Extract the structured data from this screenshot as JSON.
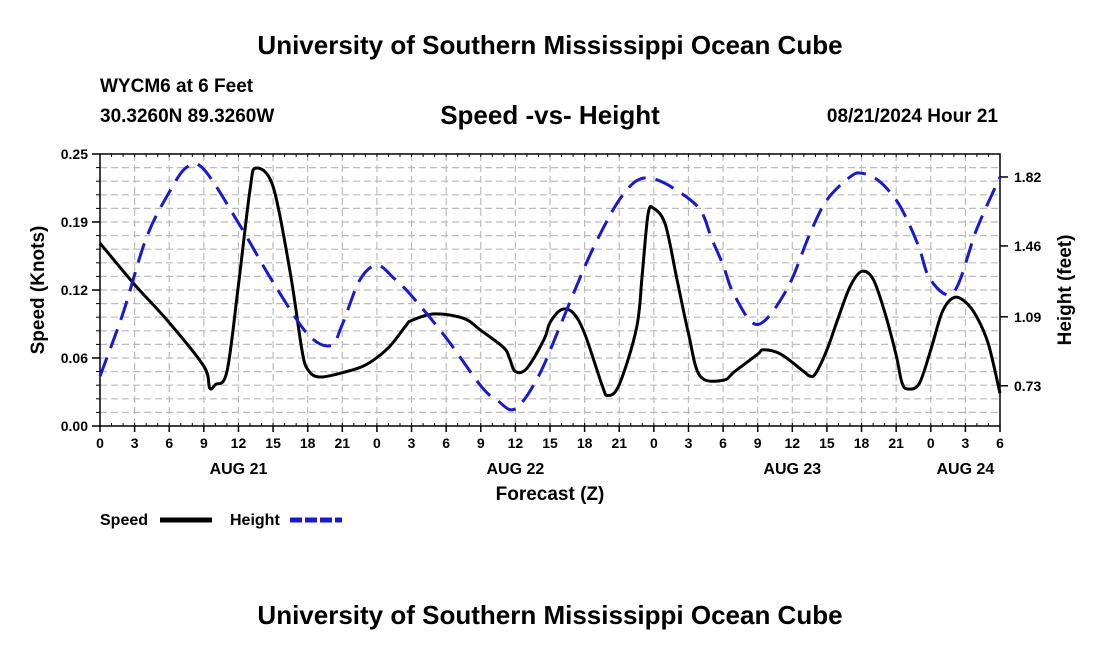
{
  "header": {
    "title": "University of Southern Mississippi Ocean Cube",
    "station": "WYCM6 at 6 Feet",
    "coordinates": "30.3260N  89.3260W",
    "subtitle": "Speed -vs- Height",
    "datetime": "08/21/2024 Hour 21"
  },
  "footer": {
    "title": "University of Southern Mississippi Ocean Cube"
  },
  "colors": {
    "speed": "#000000",
    "height": "#1a1acc",
    "grid": "#bbbbbb"
  },
  "chart_data": {
    "type": "line",
    "title": "Speed -vs- Height",
    "xlabel": "Forecast (Z)",
    "ylabel_left": "Speed (Knots)",
    "ylabel_right": "Height (feet)",
    "x_range_hours": [
      0,
      78
    ],
    "x_tick_step_hours": 3,
    "x_tick_labels": [
      "0",
      "3",
      "6",
      "9",
      "12",
      "15",
      "18",
      "21",
      "0",
      "3",
      "6",
      "9",
      "12",
      "15",
      "18",
      "21",
      "0",
      "3",
      "6",
      "9",
      "12",
      "15",
      "18",
      "21",
      "0",
      "3",
      "6"
    ],
    "date_labels": [
      {
        "hour": 12,
        "label": "AUG 21"
      },
      {
        "hour": 36,
        "label": "AUG 22"
      },
      {
        "hour": 60,
        "label": "AUG 23"
      },
      {
        "hour": 75,
        "label": "AUG 24"
      }
    ],
    "y_left_range": [
      0,
      0.25
    ],
    "y_left_ticks": [
      "0.00",
      "0.06",
      "0.12",
      "0.19",
      "0.25"
    ],
    "y_right_range": [
      0.52,
      1.94
    ],
    "y_right_ticks": [
      {
        "value": 0.73,
        "label": "0.73"
      },
      {
        "value": 1.09,
        "label": "1.09"
      },
      {
        "value": 1.46,
        "label": "1.46"
      },
      {
        "value": 1.82,
        "label": "1.82"
      }
    ],
    "grid": true,
    "legend": [
      {
        "name": "Speed",
        "style": "solid"
      },
      {
        "name": "Height",
        "style": "dashed"
      }
    ],
    "series": [
      {
        "name": "Speed",
        "axis": "left",
        "x": [
          0,
          3,
          6,
          9,
          9.5,
          10,
          11,
          12,
          13,
          13.5,
          15,
          16.5,
          17.5,
          18,
          19,
          21,
          23,
          25,
          26.5,
          27,
          29,
          31.5,
          33,
          35,
          35.5,
          36,
          37,
          38.5,
          39,
          40,
          41,
          42,
          43.5,
          44,
          45,
          46.5,
          47,
          47.5,
          48,
          49,
          50,
          51,
          52,
          54,
          55,
          57,
          57.5,
          59,
          61,
          61.5,
          62,
          63,
          64,
          65,
          66,
          67,
          68,
          69,
          69.5,
          70,
          71,
          72,
          73,
          74,
          75,
          76,
          77,
          78
        ],
        "y": [
          0.168,
          0.13,
          0.095,
          0.055,
          0.035,
          0.038,
          0.05,
          0.13,
          0.217,
          0.237,
          0.22,
          0.14,
          0.07,
          0.052,
          0.045,
          0.049,
          0.056,
          0.072,
          0.092,
          0.097,
          0.103,
          0.099,
          0.088,
          0.072,
          0.062,
          0.05,
          0.053,
          0.08,
          0.095,
          0.107,
          0.104,
          0.085,
          0.038,
          0.028,
          0.038,
          0.09,
          0.14,
          0.195,
          0.2,
          0.185,
          0.135,
          0.085,
          0.046,
          0.042,
          0.05,
          0.066,
          0.07,
          0.066,
          0.05,
          0.046,
          0.048,
          0.07,
          0.1,
          0.128,
          0.142,
          0.135,
          0.105,
          0.065,
          0.04,
          0.034,
          0.039,
          0.07,
          0.105,
          0.118,
          0.114,
          0.1,
          0.075,
          0.03
        ]
      },
      {
        "name": "Height",
        "axis": "right",
        "x": [
          0,
          2,
          4,
          6,
          7.5,
          9,
          12,
          15,
          18,
          20,
          21,
          22.5,
          24,
          25.5,
          27,
          30,
          33,
          34.5,
          36,
          38,
          40,
          42,
          43.5,
          45,
          46.5,
          48,
          50,
          52,
          53,
          54,
          55,
          57,
          59.5,
          61.5,
          63,
          65,
          66,
          67.5,
          69,
          70,
          71,
          72,
          74,
          76,
          78
        ],
        "y": [
          0.78,
          1.11,
          1.5,
          1.74,
          1.87,
          1.86,
          1.58,
          1.27,
          1.0,
          0.94,
          1.05,
          1.28,
          1.36,
          1.29,
          1.2,
          0.98,
          0.73,
          0.65,
          0.61,
          0.78,
          1.06,
          1.35,
          1.54,
          1.7,
          1.8,
          1.81,
          1.75,
          1.65,
          1.5,
          1.36,
          1.2,
          1.05,
          1.23,
          1.52,
          1.7,
          1.82,
          1.84,
          1.8,
          1.7,
          1.59,
          1.45,
          1.28,
          1.22,
          1.55,
          1.82
        ]
      }
    ]
  }
}
